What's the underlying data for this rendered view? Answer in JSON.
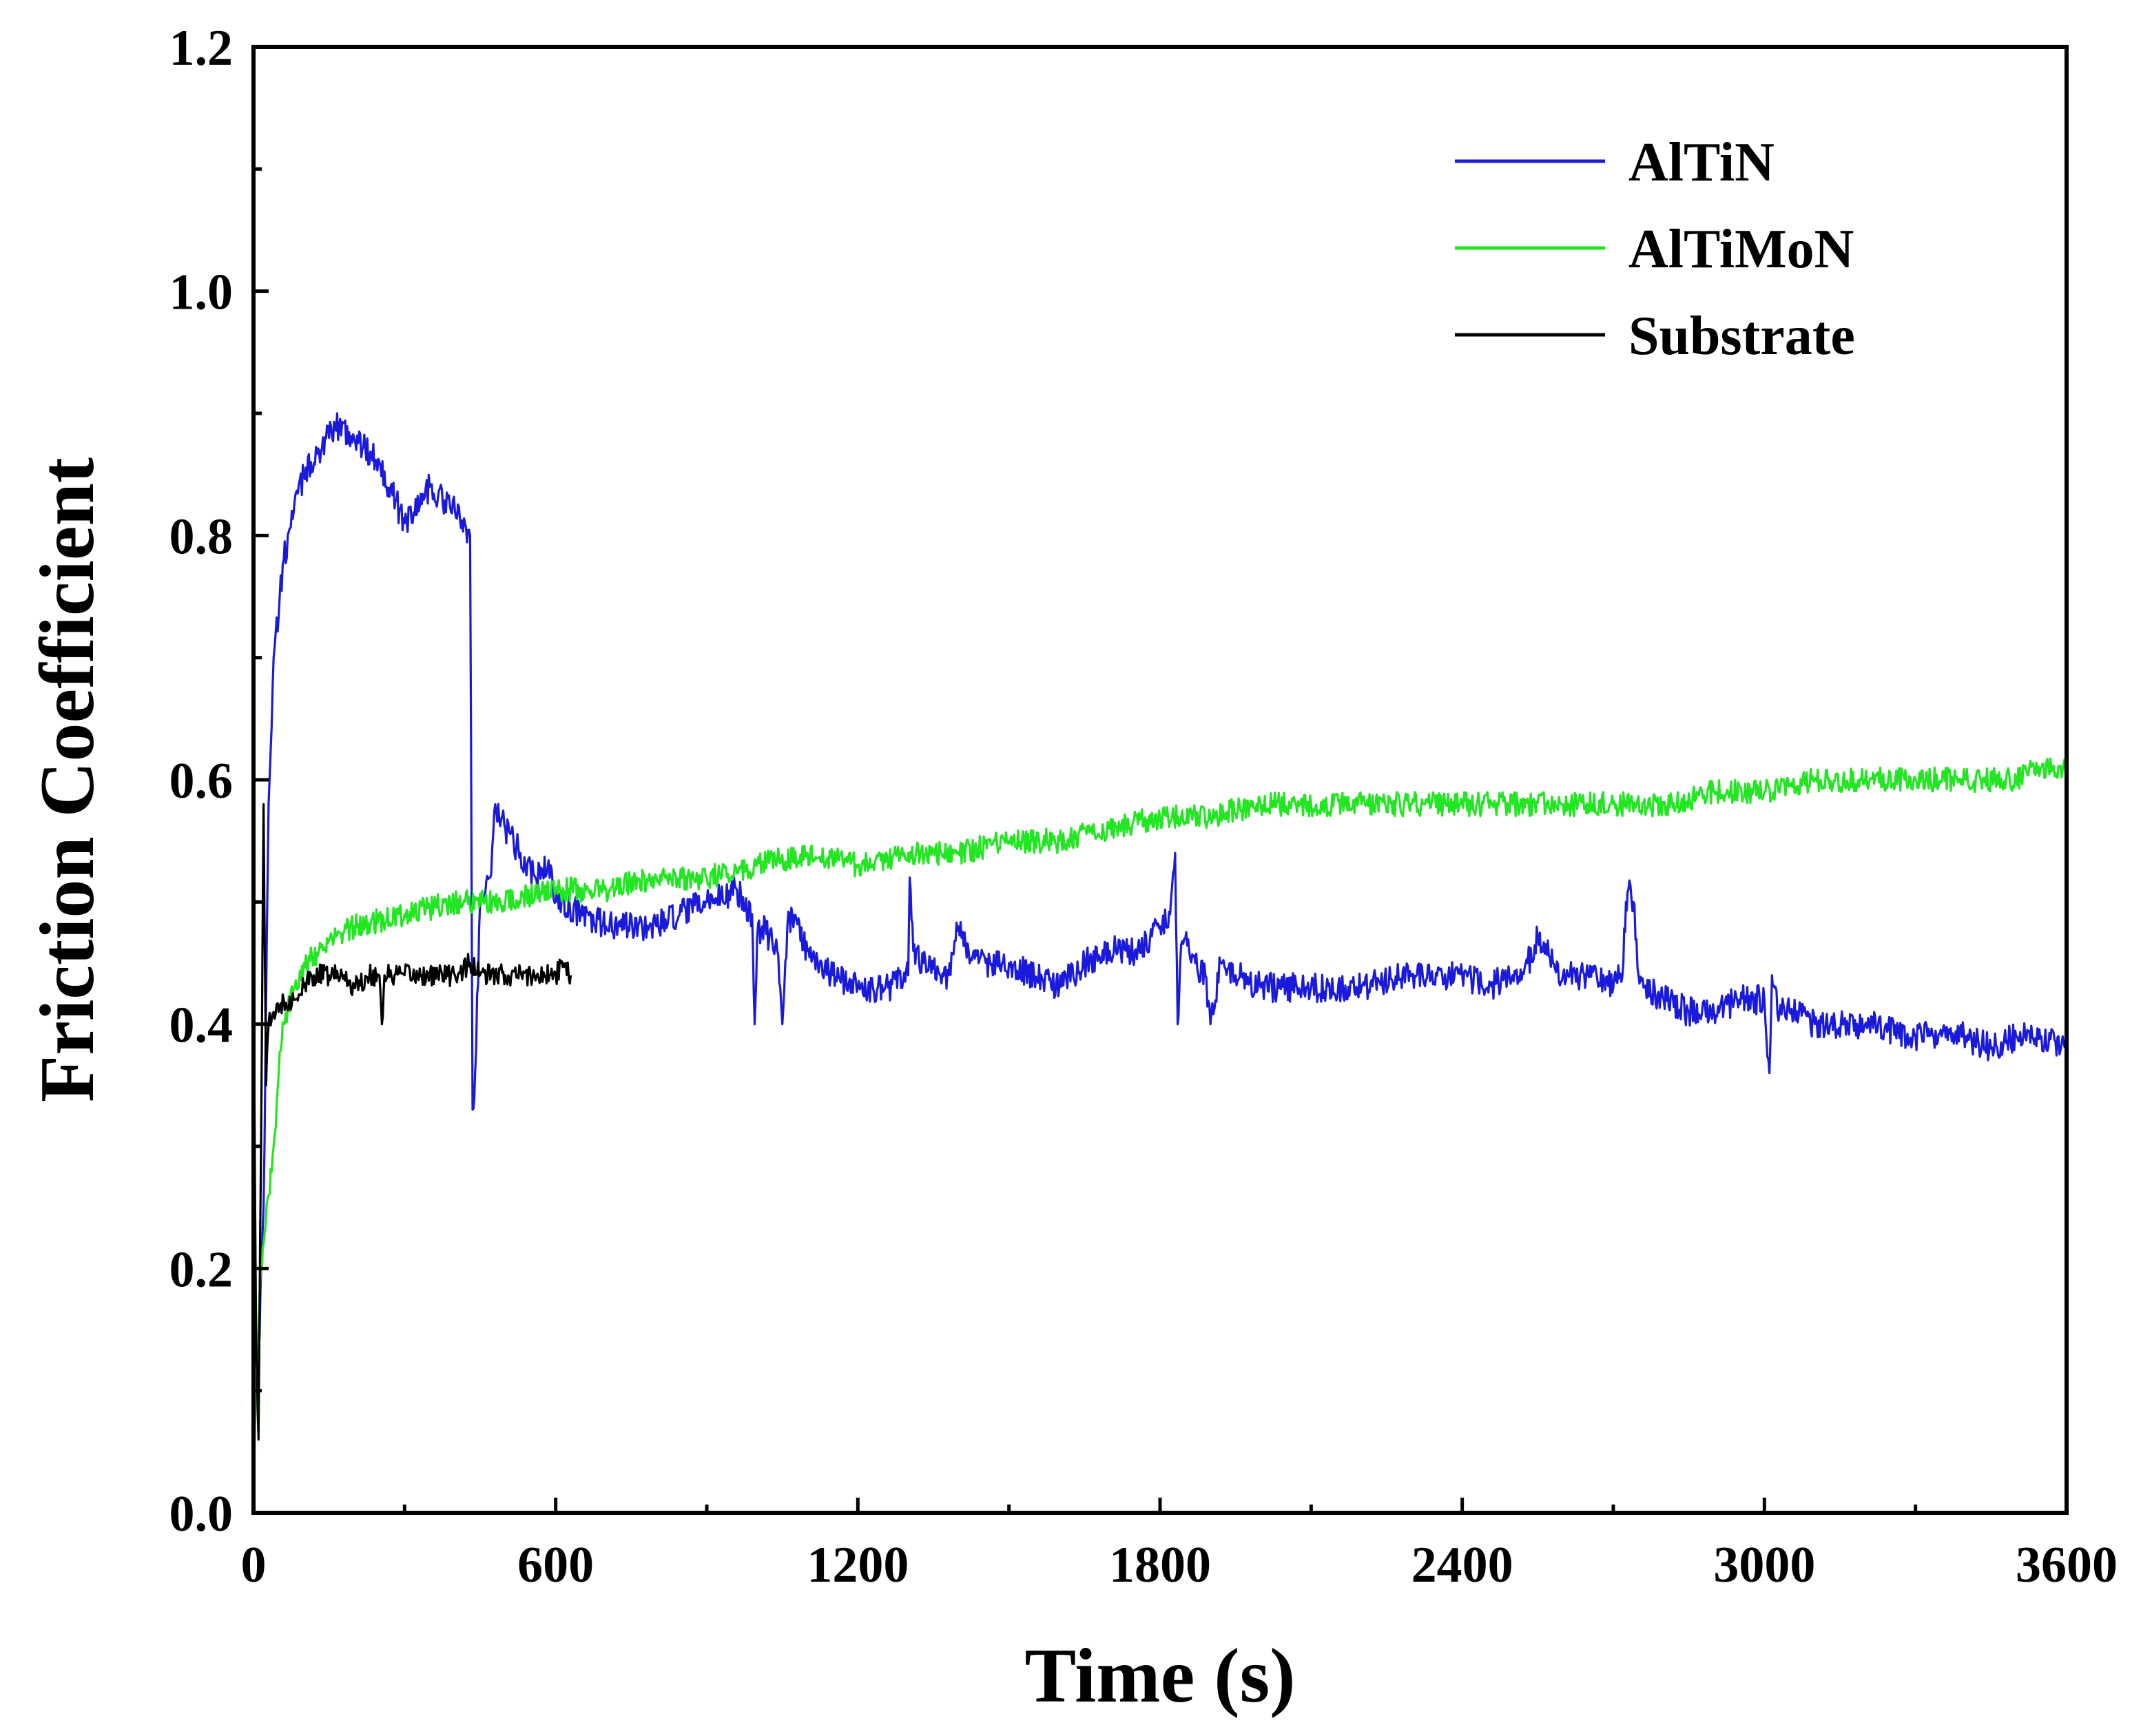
{
  "chart_data": {
    "type": "line",
    "title": "",
    "xlabel": "Time (s)",
    "ylabel": "Friction Coefficient",
    "xlim": [
      0,
      3600
    ],
    "ylim": [
      0.0,
      1.2
    ],
    "xticks": [
      0,
      600,
      1200,
      1800,
      2400,
      3000,
      3600
    ],
    "yticks": [
      0.0,
      0.2,
      0.4,
      0.6,
      0.8,
      1.0,
      1.2
    ],
    "xtick_labels": [
      "0",
      "600",
      "1200",
      "1800",
      "2400",
      "3000",
      "3600"
    ],
    "ytick_labels": [
      "0.0",
      "0.2",
      "0.4",
      "0.6",
      "0.8",
      "1.0",
      "1.2"
    ],
    "grid": false,
    "legend_position": "top-right",
    "series": [
      {
        "name": "AlTiN",
        "color": "#1a1adc",
        "noise": 0.012,
        "x": [
          0,
          10,
          20,
          30,
          40,
          60,
          80,
          100,
          130,
          150,
          170,
          200,
          250,
          300,
          350,
          400,
          420,
          430,
          435,
          440,
          450,
          470,
          480,
          500,
          530,
          560,
          590,
          600,
          650,
          700,
          800,
          900,
          960,
          990,
          995,
          1000,
          1010,
          1040,
          1050,
          1060,
          1070,
          1100,
          1150,
          1200,
          1260,
          1300,
          1303,
          1310,
          1330,
          1380,
          1400,
          1420,
          1440,
          1500,
          1550,
          1600,
          1650,
          1700,
          1750,
          1780,
          1800,
          1820,
          1830,
          1835,
          1840,
          1850,
          1870,
          1890,
          1900,
          1920,
          1950,
          2000,
          2100,
          2200,
          2300,
          2400,
          2450,
          2500,
          2530,
          2550,
          2580,
          2600,
          2650,
          2700,
          2720,
          2725,
          2730,
          2740,
          2750,
          2760,
          2800,
          2850,
          2900,
          2950,
          3000,
          3010,
          3015,
          3020,
          3030,
          3050,
          3100,
          3200,
          3300,
          3400,
          3450,
          3500,
          3550,
          3600
        ],
        "y": [
          0.15,
          0.13,
          0.25,
          0.58,
          0.7,
          0.78,
          0.82,
          0.85,
          0.87,
          0.88,
          0.89,
          0.88,
          0.86,
          0.81,
          0.84,
          0.82,
          0.81,
          0.8,
          0.33,
          0.36,
          0.5,
          0.52,
          0.58,
          0.56,
          0.54,
          0.52,
          0.53,
          0.5,
          0.49,
          0.48,
          0.48,
          0.5,
          0.51,
          0.49,
          0.4,
          0.47,
          0.48,
          0.46,
          0.4,
          0.48,
          0.49,
          0.46,
          0.44,
          0.43,
          0.43,
          0.44,
          0.52,
          0.46,
          0.45,
          0.44,
          0.48,
          0.46,
          0.45,
          0.45,
          0.44,
          0.43,
          0.45,
          0.46,
          0.46,
          0.47,
          0.48,
          0.49,
          0.54,
          0.4,
          0.45,
          0.47,
          0.45,
          0.44,
          0.4,
          0.45,
          0.44,
          0.43,
          0.43,
          0.43,
          0.44,
          0.44,
          0.43,
          0.44,
          0.45,
          0.47,
          0.45,
          0.44,
          0.44,
          0.43,
          0.45,
          0.5,
          0.51,
          0.5,
          0.44,
          0.43,
          0.42,
          0.41,
          0.41,
          0.42,
          0.42,
          0.36,
          0.44,
          0.43,
          0.41,
          0.41,
          0.4,
          0.4,
          0.39,
          0.39,
          0.38,
          0.39,
          0.39,
          0.38
        ]
      },
      {
        "name": "AlTiMoN",
        "color": "#22e622",
        "noise": 0.01,
        "x": [
          0,
          5,
          10,
          15,
          20,
          30,
          40,
          50,
          60,
          80,
          100,
          130,
          160,
          200,
          300,
          400,
          500,
          600,
          700,
          800,
          900,
          1000,
          1100,
          1200,
          1300,
          1400,
          1500,
          1600,
          1700,
          1800,
          1900,
          2000,
          2100,
          2200,
          2300,
          2400,
          2500,
          2600,
          2700,
          2800,
          2900,
          3000,
          3100,
          3200,
          3300,
          3400,
          3500,
          3550,
          3600
        ],
        "y": [
          0.02,
          0.1,
          0.15,
          0.2,
          0.22,
          0.26,
          0.3,
          0.36,
          0.4,
          0.43,
          0.45,
          0.46,
          0.47,
          0.48,
          0.49,
          0.5,
          0.5,
          0.51,
          0.51,
          0.52,
          0.52,
          0.53,
          0.54,
          0.53,
          0.54,
          0.54,
          0.55,
          0.55,
          0.56,
          0.57,
          0.57,
          0.58,
          0.58,
          0.58,
          0.58,
          0.58,
          0.58,
          0.58,
          0.58,
          0.58,
          0.59,
          0.59,
          0.6,
          0.6,
          0.6,
          0.6,
          0.6,
          0.61,
          0.61
        ]
      },
      {
        "name": "Substrate",
        "color": "#000000",
        "noise": 0.009,
        "x": [
          0,
          5,
          10,
          15,
          20,
          25,
          30,
          40,
          50,
          60,
          80,
          100,
          120,
          150,
          180,
          200,
          230,
          250,
          255,
          260,
          280,
          300,
          350,
          400,
          430,
          450,
          500,
          550,
          600,
          620,
          630
        ],
        "y": [
          0.46,
          0.15,
          0.06,
          0.3,
          0.58,
          0.35,
          0.4,
          0.41,
          0.41,
          0.42,
          0.42,
          0.43,
          0.44,
          0.44,
          0.44,
          0.43,
          0.44,
          0.44,
          0.4,
          0.44,
          0.44,
          0.44,
          0.44,
          0.44,
          0.45,
          0.44,
          0.44,
          0.44,
          0.44,
          0.45,
          0.44
        ]
      }
    ]
  }
}
